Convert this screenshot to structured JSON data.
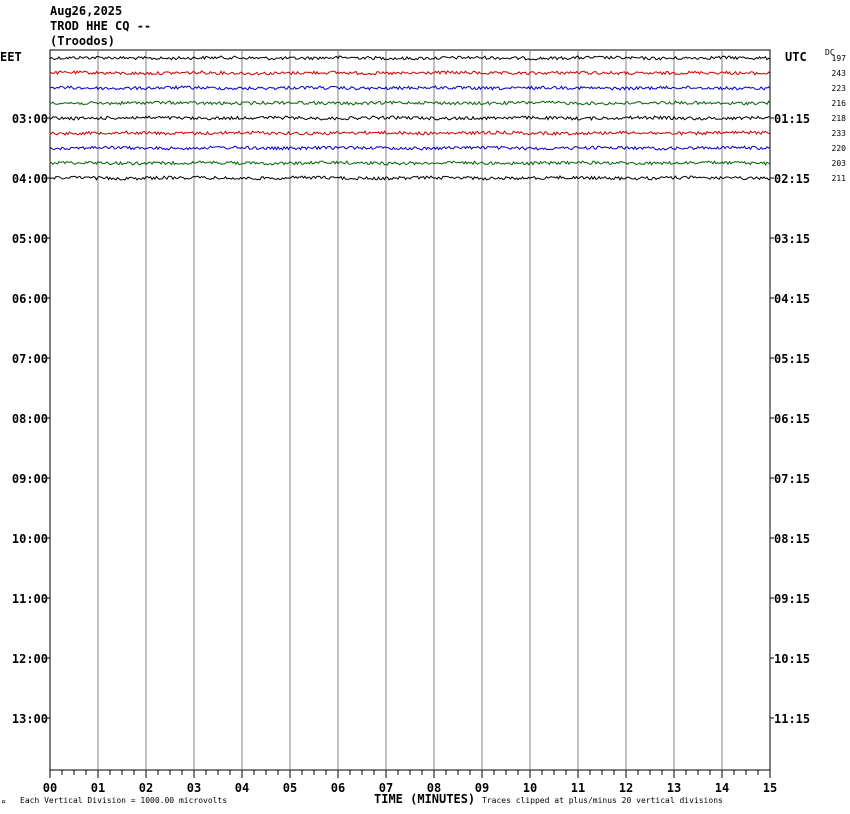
{
  "header": {
    "date": "Aug26,2025",
    "station": "TROD HHE CQ --",
    "location": "(Troodos)"
  },
  "left_zone": "EET",
  "right_zone": "UTC",
  "dc_label": "DC",
  "footer": {
    "mark": "¤",
    "scale": "Each Vertical Division = 1000.00 microvolts",
    "xtitle": "TIME (MINUTES)",
    "clip": "Traces clipped at plus/minus 20 vertical divisions"
  },
  "chart_data": {
    "type": "line",
    "title": "TROD HHE CQ --",
    "xlabel": "TIME (MINUTES)",
    "x_range": [
      0,
      15
    ],
    "x_ticks": [
      "00",
      "01",
      "02",
      "03",
      "04",
      "05",
      "06",
      "07",
      "08",
      "09",
      "10",
      "11",
      "12",
      "13",
      "14",
      "15"
    ],
    "left_hour_labels": [
      "03:00",
      "04:00",
      "05:00",
      "06:00",
      "07:00",
      "08:00",
      "09:00",
      "10:00",
      "11:00",
      "12:00",
      "13:00"
    ],
    "right_hour_labels": [
      "01:15",
      "02:15",
      "03:15",
      "04:15",
      "05:15",
      "06:15",
      "07:15",
      "08:15",
      "09:15",
      "10:15",
      "11:15"
    ],
    "grid": true,
    "series": [
      {
        "dc": "197",
        "color": "#000000",
        "row": 0
      },
      {
        "dc": "243",
        "color": "#cc0000",
        "row": 1
      },
      {
        "dc": "223",
        "color": "#0000cc",
        "row": 2
      },
      {
        "dc": "216",
        "color": "#006600",
        "row": 3
      },
      {
        "dc": "218",
        "color": "#000000",
        "row": 4
      },
      {
        "dc": "233",
        "color": "#cc0000",
        "row": 5
      },
      {
        "dc": "220",
        "color": "#0000cc",
        "row": 6
      },
      {
        "dc": "203",
        "color": "#006600",
        "row": 7
      },
      {
        "dc": "211",
        "color": "#000000",
        "row": 8
      }
    ]
  }
}
